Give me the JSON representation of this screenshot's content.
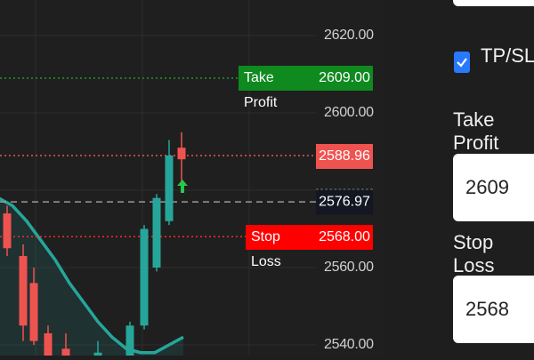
{
  "chart_data": {
    "type": "candlestick",
    "y_ticks": [
      "2620.00",
      "2600.00",
      "2560.00",
      "2540.00"
    ],
    "ylim": [
      2537,
      2624
    ],
    "lines": {
      "take_profit": {
        "label": "Take Profit",
        "value": "2609.00",
        "color": "#0f8a1e"
      },
      "current": {
        "value": "2588.96",
        "color": "#ef5350"
      },
      "entry": {
        "value": "2576.97",
        "color": "#131722"
      },
      "stop_loss": {
        "label": "Stop Loss",
        "value": "2568.00",
        "color": "#ff0000"
      }
    },
    "candles": [
      {
        "o": 2574,
        "h": 2576,
        "l": 2563,
        "c": 2565,
        "color": "#ef5350"
      },
      {
        "o": 2563,
        "h": 2566,
        "l": 2541,
        "c": 2545,
        "color": "#ef5350"
      },
      {
        "o": 2556,
        "h": 2560,
        "l": 2540,
        "c": 2541,
        "color": "#ef5350"
      },
      {
        "o": 2543,
        "h": 2545,
        "l": 2536,
        "c": 2537,
        "color": "#ef5350"
      },
      {
        "o": 2539,
        "h": 2543,
        "l": 2535,
        "c": 2536,
        "color": "#ef5350"
      },
      {
        "o": 2538,
        "h": 2541,
        "l": 2535,
        "c": 2536,
        "color": "#26a69a"
      },
      {
        "o": 2536,
        "h": 2546,
        "l": 2536,
        "c": 2545,
        "color": "#26a69a"
      },
      {
        "o": 2545,
        "h": 2571,
        "l": 2544,
        "c": 2570,
        "color": "#26a69a"
      },
      {
        "o": 2560,
        "h": 2579,
        "l": 2559,
        "c": 2578,
        "color": "#26a69a"
      },
      {
        "o": 2572,
        "h": 2593,
        "l": 2571,
        "c": 2589,
        "color": "#26a69a"
      },
      {
        "o": 2591,
        "h": 2595,
        "l": 2582,
        "c": 2588,
        "color": "#ef5350"
      }
    ],
    "moving_average": {
      "color": "#26a69a",
      "values": [
        2578,
        2576,
        2572,
        2567,
        2562,
        2556,
        2551,
        2546,
        2542,
        2539,
        2538,
        2538,
        2540,
        2542
      ]
    },
    "grid": true
  },
  "panel": {
    "tpsl_label": "TP/SL",
    "tpsl_checked": true,
    "take_profit_label": "Take Profit",
    "take_profit_value": "2609",
    "stop_loss_label": "Stop Loss",
    "stop_loss_value": "2568"
  }
}
